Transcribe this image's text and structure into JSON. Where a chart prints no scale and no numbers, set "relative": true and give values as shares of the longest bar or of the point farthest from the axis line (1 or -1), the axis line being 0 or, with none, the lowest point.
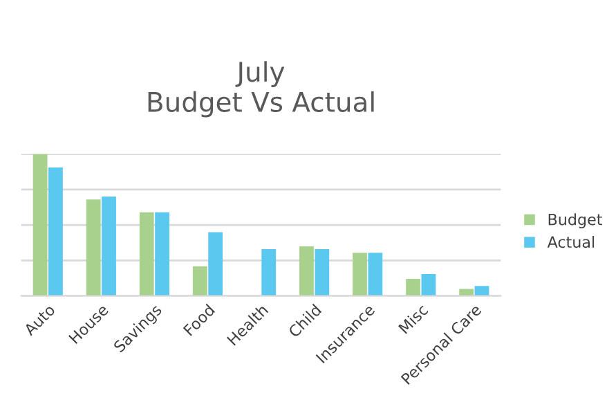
{
  "chart_data": {
    "type": "bar",
    "title": "July\nBudget Vs Actual",
    "relative": true,
    "grid": "y",
    "legend": "right",
    "categories": [
      "Auto",
      "House",
      "Savings",
      "Food",
      "Health",
      "Child",
      "Insurance",
      "Misc",
      "Personal Care"
    ],
    "series": [
      {
        "name": "Budget",
        "color": "#a9d18e",
        "values": [
          1.0,
          0.68,
          0.59,
          0.21,
          null,
          0.35,
          0.305,
          0.12,
          0.05
        ]
      },
      {
        "name": "Actual",
        "color": "#5bc8f0",
        "values": [
          0.905,
          0.7,
          0.59,
          0.45,
          0.33,
          0.33,
          0.305,
          0.155,
          0.07
        ]
      }
    ]
  }
}
